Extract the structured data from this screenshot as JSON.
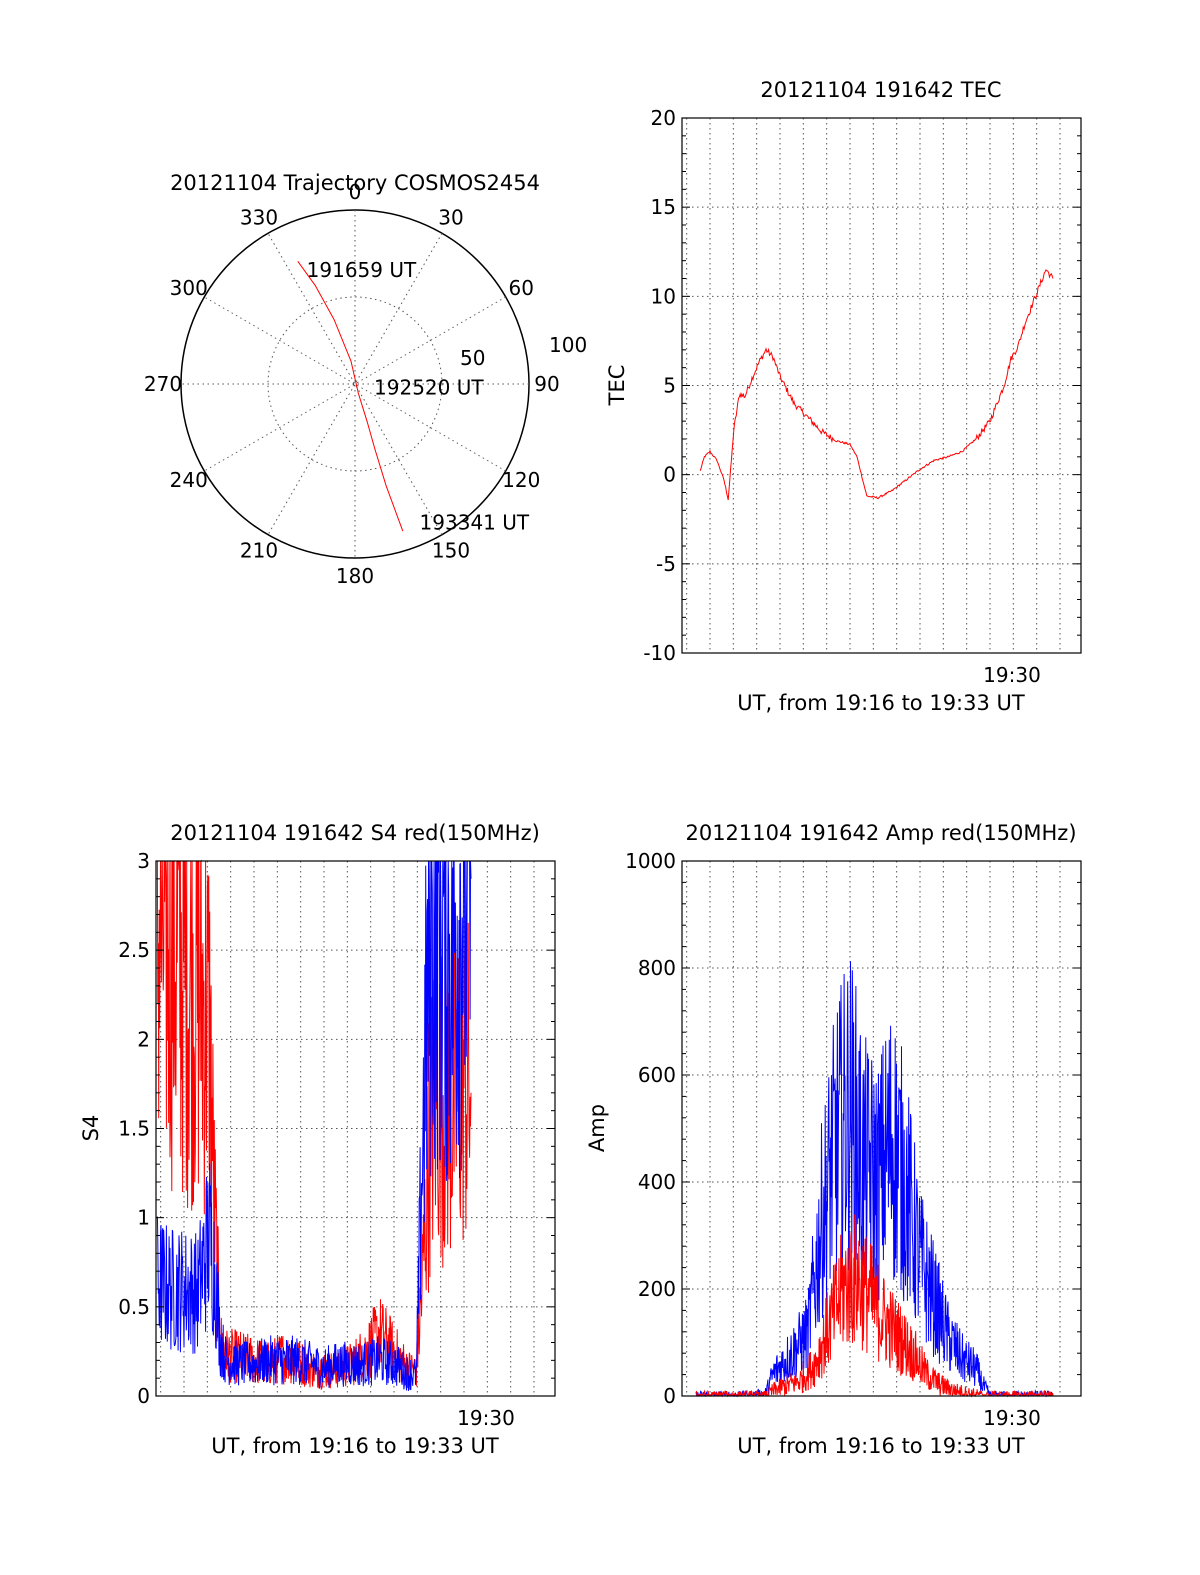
{
  "colors": {
    "red": "#ff0000",
    "blue": "#0000ff",
    "grid": "#555555"
  },
  "chart_data": [
    {
      "type": "polar",
      "title": "20121104 Trajectory COSMOS2454",
      "angle_labels": [
        "0",
        "30",
        "60",
        "90",
        "120",
        "150",
        "180",
        "210",
        "240",
        "270",
        "300",
        "330"
      ],
      "radial_labels": [
        "50",
        "100"
      ],
      "trajectory": {
        "color": "red",
        "points": [
          {
            "az": 335,
            "el": 20
          },
          {
            "az": 338,
            "el": 35
          },
          {
            "az": 342,
            "el": 55
          },
          {
            "az": 350,
            "el": 78
          },
          {
            "az": 160,
            "el": 85
          },
          {
            "az": 162,
            "el": 70
          },
          {
            "az": 163,
            "el": 55
          },
          {
            "az": 163,
            "el": 35
          },
          {
            "az": 162,
            "el": 10
          }
        ]
      },
      "annotations": [
        {
          "text": "191659 UT",
          "az": 337,
          "el": 26
        },
        {
          "text": "192520 UT",
          "az": 100,
          "el": 80
        },
        {
          "text": "193341 UT",
          "az": 155,
          "el": 11
        }
      ]
    },
    {
      "type": "line",
      "title": "20121104 191642 TEC",
      "ylabel": "TEC",
      "xlabel": "UT, from 19:16 to 19:33 UT",
      "xlim": [
        19.28,
        19.565
      ],
      "ylim": [
        -10,
        20
      ],
      "yticks": [
        "-10",
        "-5",
        "0",
        "5",
        "10",
        "15",
        "20"
      ],
      "xtick_label": "19:30",
      "series": [
        {
          "color": "red",
          "noise": 0.18,
          "points": [
            [
              19.293,
              0.2
            ],
            [
              19.296,
              1.0
            ],
            [
              19.3,
              1.3
            ],
            [
              19.305,
              0.8
            ],
            [
              19.31,
              -0.3
            ],
            [
              19.313,
              -1.4
            ],
            [
              19.317,
              2.5
            ],
            [
              19.321,
              4.5
            ],
            [
              19.325,
              4.4
            ],
            [
              19.33,
              5.4
            ],
            [
              19.335,
              6.3
            ],
            [
              19.34,
              7.0
            ],
            [
              19.345,
              6.6
            ],
            [
              19.35,
              5.5
            ],
            [
              19.36,
              4.0
            ],
            [
              19.37,
              3.2
            ],
            [
              19.38,
              2.4
            ],
            [
              19.39,
              1.9
            ],
            [
              19.4,
              1.7
            ],
            [
              19.405,
              1.0
            ],
            [
              19.412,
              -1.2
            ],
            [
              19.42,
              -1.3
            ],
            [
              19.43,
              -0.9
            ],
            [
              19.44,
              -0.3
            ],
            [
              19.45,
              0.3
            ],
            [
              19.46,
              0.8
            ],
            [
              19.47,
              1.0
            ],
            [
              19.48,
              1.3
            ],
            [
              19.49,
              2.0
            ],
            [
              19.5,
              3.0
            ],
            [
              19.51,
              5.0
            ],
            [
              19.515,
              6.5
            ],
            [
              19.52,
              7.2
            ],
            [
              19.525,
              8.5
            ],
            [
              19.53,
              9.5
            ],
            [
              19.535,
              10.5
            ],
            [
              19.54,
              11.5
            ],
            [
              19.545,
              11.0
            ]
          ]
        }
      ]
    },
    {
      "type": "line",
      "title": "20121104 191642 S4 red(150MHz)",
      "ylabel": "S4",
      "xlabel": "UT, from 19:16 to 19:33 UT",
      "xlim": [
        19.28,
        19.565
      ],
      "ylim": [
        0,
        3
      ],
      "yticks": [
        "0",
        "0.5",
        "1",
        "1.5",
        "2",
        "2.5",
        "3"
      ],
      "xtick_label": "19:30",
      "series": [
        {
          "color": "red",
          "spiky": true,
          "points": [
            [
              19.281,
              2.6
            ],
            [
              19.29,
              2.6
            ],
            [
              19.3,
              2.4
            ],
            [
              19.31,
              2.3
            ],
            [
              19.318,
              2.1
            ],
            [
              19.322,
              1.0
            ],
            [
              19.326,
              0.3
            ],
            [
              19.33,
              0.23
            ],
            [
              19.34,
              0.22
            ],
            [
              19.35,
              0.2
            ],
            [
              19.36,
              0.18
            ],
            [
              19.37,
              0.22
            ],
            [
              19.38,
              0.2
            ],
            [
              19.39,
              0.16
            ],
            [
              19.4,
              0.15
            ],
            [
              19.41,
              0.15
            ],
            [
              19.42,
              0.18
            ],
            [
              19.43,
              0.25
            ],
            [
              19.44,
              0.35
            ],
            [
              19.45,
              0.25
            ],
            [
              19.46,
              0.15
            ],
            [
              19.466,
              0.15
            ],
            [
              19.47,
              0.6
            ],
            [
              19.475,
              1.4
            ],
            [
              19.48,
              1.7
            ],
            [
              19.49,
              1.6
            ],
            [
              19.5,
              1.8
            ],
            [
              19.505,
              1.7
            ]
          ]
        },
        {
          "color": "blue",
          "spiky": true,
          "points": [
            [
              19.281,
              0.65
            ],
            [
              19.29,
              0.6
            ],
            [
              19.3,
              0.6
            ],
            [
              19.31,
              0.58
            ],
            [
              19.318,
              0.9
            ],
            [
              19.322,
              0.7
            ],
            [
              19.326,
              0.3
            ],
            [
              19.33,
              0.2
            ],
            [
              19.34,
              0.18
            ],
            [
              19.35,
              0.18
            ],
            [
              19.36,
              0.2
            ],
            [
              19.37,
              0.2
            ],
            [
              19.38,
              0.2
            ],
            [
              19.39,
              0.18
            ],
            [
              19.4,
              0.16
            ],
            [
              19.41,
              0.18
            ],
            [
              19.42,
              0.18
            ],
            [
              19.43,
              0.18
            ],
            [
              19.44,
              0.2
            ],
            [
              19.45,
              0.18
            ],
            [
              19.46,
              0.13
            ],
            [
              19.466,
              0.12
            ],
            [
              19.47,
              1.3
            ],
            [
              19.475,
              2.5
            ],
            [
              19.48,
              2.8
            ],
            [
              19.49,
              2.5
            ],
            [
              19.5,
              2.8
            ],
            [
              19.505,
              2.9
            ]
          ]
        }
      ]
    },
    {
      "type": "line",
      "title": "20121104 191642 Amp red(150MHz)",
      "ylabel": "Amp",
      "xlabel": "UT, from 19:16 to 19:33 UT",
      "xlim": [
        19.28,
        19.565
      ],
      "ylim": [
        0,
        1000
      ],
      "yticks": [
        "0",
        "200",
        "400",
        "600",
        "800",
        "1000"
      ],
      "xtick_label": "19:30",
      "series": [
        {
          "color": "blue",
          "spiky": true,
          "points": [
            [
              19.29,
              0
            ],
            [
              19.33,
              0
            ],
            [
              19.34,
              5
            ],
            [
              19.345,
              40
            ],
            [
              19.355,
              70
            ],
            [
              19.365,
              100
            ],
            [
              19.37,
              120
            ],
            [
              19.38,
              330
            ],
            [
              19.39,
              470
            ],
            [
              19.4,
              540
            ],
            [
              19.41,
              430
            ],
            [
              19.42,
              400
            ],
            [
              19.43,
              480
            ],
            [
              19.44,
              390
            ],
            [
              19.45,
              250
            ],
            [
              19.46,
              180
            ],
            [
              19.47,
              110
            ],
            [
              19.48,
              70
            ],
            [
              19.49,
              50
            ],
            [
              19.495,
              20
            ],
            [
              19.5,
              0
            ],
            [
              19.545,
              0
            ]
          ]
        },
        {
          "color": "red",
          "spiky": true,
          "points": [
            [
              19.29,
              0
            ],
            [
              19.34,
              0
            ],
            [
              19.345,
              10
            ],
            [
              19.355,
              20
            ],
            [
              19.365,
              30
            ],
            [
              19.375,
              60
            ],
            [
              19.385,
              130
            ],
            [
              19.395,
              200
            ],
            [
              19.405,
              220
            ],
            [
              19.415,
              180
            ],
            [
              19.425,
              140
            ],
            [
              19.435,
              110
            ],
            [
              19.445,
              80
            ],
            [
              19.455,
              40
            ],
            [
              19.465,
              20
            ],
            [
              19.475,
              10
            ],
            [
              19.485,
              5
            ],
            [
              19.495,
              0
            ],
            [
              19.545,
              0
            ]
          ]
        }
      ]
    }
  ]
}
